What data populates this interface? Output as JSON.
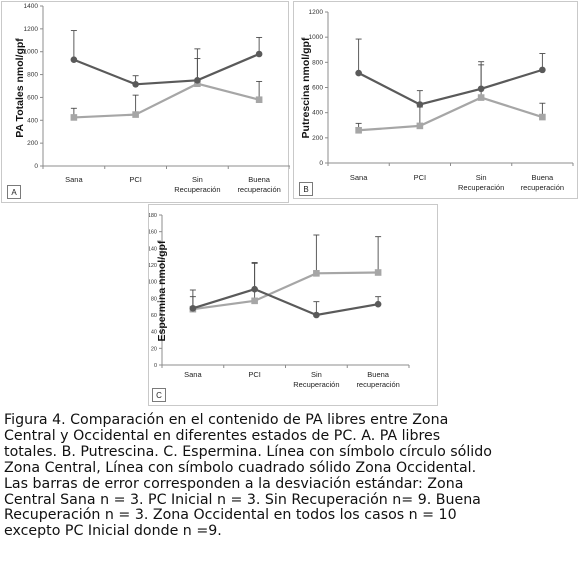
{
  "chart_data": [
    {
      "type": "line",
      "panel_label": "A",
      "ylabel": "PA Totales nmol/gpf",
      "categories": [
        [
          "Sana"
        ],
        [
          "PCI"
        ],
        [
          "Sin",
          "Recuperación"
        ],
        [
          "Buena",
          "recuperación"
        ]
      ],
      "ylim": [
        0,
        1400
      ],
      "yticks": [
        "0",
        "200",
        "400",
        "600",
        "800",
        "1000",
        "1200",
        "1400"
      ],
      "series": [
        {
          "marker": "circle",
          "color": "#5a5a5a",
          "values": [
            930,
            715,
            750,
            980
          ],
          "errors": [
            255,
            75,
            275,
            145
          ]
        },
        {
          "marker": "square",
          "color": "#a6a6a6",
          "values": [
            425,
            450,
            720,
            580
          ],
          "errors": [
            80,
            170,
            220,
            160
          ]
        }
      ]
    },
    {
      "type": "line",
      "panel_label": "B",
      "ylabel": "Putrescina  nmol/gpf",
      "categories": [
        [
          "Sana"
        ],
        [
          "PCI"
        ],
        [
          "Sin",
          "Recuperación"
        ],
        [
          "Buena",
          "recuperación"
        ]
      ],
      "ylim": [
        0,
        1200
      ],
      "yticks": [
        "0",
        "200",
        "400",
        "600",
        "800",
        "1000",
        "1200"
      ],
      "series": [
        {
          "marker": "circle",
          "color": "#5a5a5a",
          "values": [
            715,
            465,
            590,
            740
          ],
          "errors": [
            270,
            110,
            215,
            130
          ]
        },
        {
          "marker": "square",
          "color": "#a6a6a6",
          "values": [
            260,
            295,
            520,
            365
          ],
          "errors": [
            55,
            150,
            260,
            110
          ]
        }
      ]
    },
    {
      "type": "line",
      "panel_label": "C",
      "ylabel": "Espermina  nmol/gpf",
      "categories": [
        [
          "Sana"
        ],
        [
          "PCI"
        ],
        [
          "Sin",
          "Recuperación"
        ],
        [
          "Buena",
          "recuperación"
        ]
      ],
      "ylim": [
        0,
        180
      ],
      "yticks": [
        "0",
        "20",
        "40",
        "60",
        "80",
        "100",
        "120",
        "140",
        "160",
        "180"
      ],
      "series": [
        {
          "marker": "circle",
          "color": "#5a5a5a",
          "values": [
            68,
            91,
            60,
            73
          ],
          "errors": [
            22,
            32,
            16,
            9
          ]
        },
        {
          "marker": "square",
          "color": "#a6a6a6",
          "values": [
            67,
            77,
            110,
            111
          ],
          "errors": [
            15,
            45,
            46,
            43
          ]
        }
      ]
    }
  ],
  "caption": {
    "lines": [
      "Figura 4. Comparación en el contenido de PA libres entre Zona",
      "Central y Occidental en diferentes estados de PC. A. PA libres",
      "totales. B. Putrescina. C. Espermina. Línea con símbolo círculo sólido",
      "Zona Central, Línea con símbolo cuadrado sólido Zona Occidental.",
      "Las barras de error corresponden a la desviación estándar: Zona",
      "Central Sana n = 3. PC Inicial n = 3. Sin Recuperación n= 9. Buena",
      "Recuperación n = 3. Zona Occidental en todos los casos n = 10",
      "excepto  PC Inicial donde n =9."
    ]
  }
}
